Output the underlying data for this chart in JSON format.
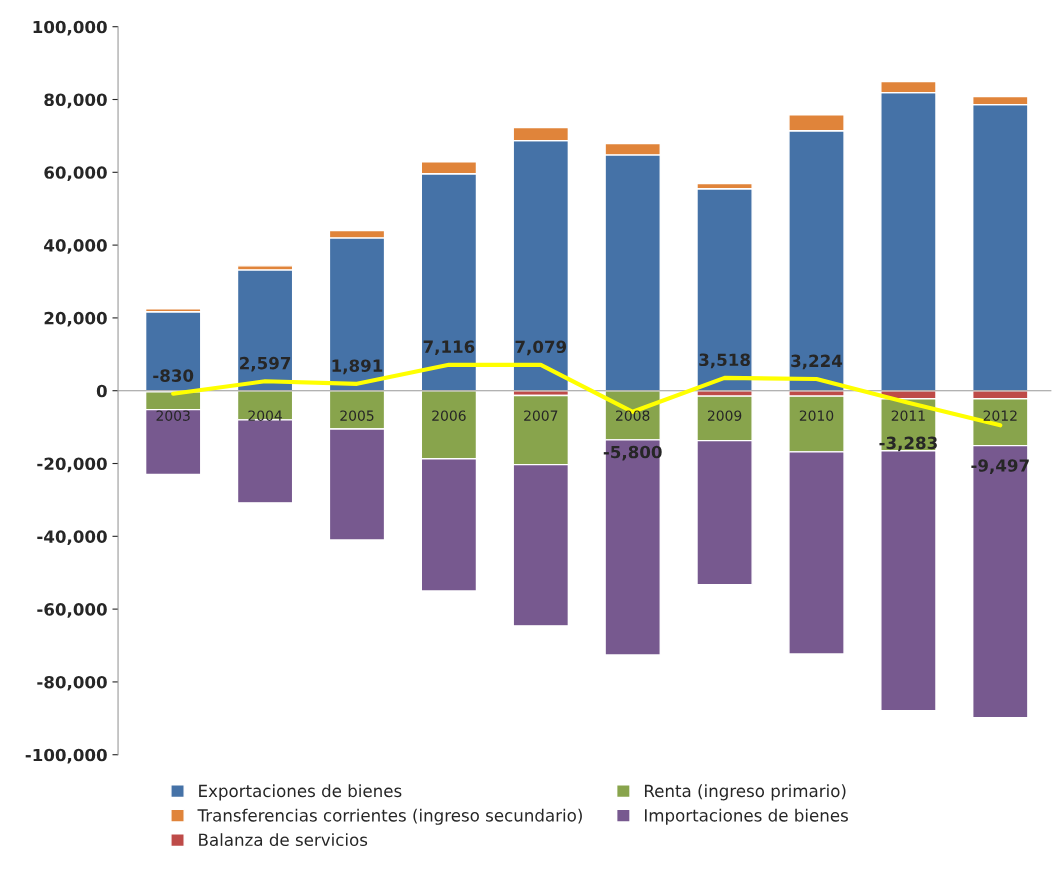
{
  "chart_data": {
    "type": "bar",
    "stacked": true,
    "categories": [
      "2003",
      "2004",
      "2005",
      "2006",
      "2007",
      "2008",
      "2009",
      "2010",
      "2011",
      "2012"
    ],
    "series": [
      {
        "name": "Exportaciones de bienes",
        "color": "#4572a7",
        "values": [
          21700,
          33200,
          42000,
          59600,
          68700,
          64800,
          55500,
          71400,
          81900,
          78600
        ]
      },
      {
        "name": "Transferencias corrientes (ingreso secundario)",
        "color": "#e0843a",
        "values": [
          800,
          1100,
          2000,
          3300,
          3600,
          3100,
          1400,
          4400,
          3000,
          2200
        ]
      },
      {
        "name": "Balanza de servicios",
        "color": "#be4b48",
        "values": [
          -300,
          null,
          null,
          null,
          -1300,
          null,
          -1500,
          -1500,
          -2200,
          -2200
        ]
      },
      {
        "name": "Renta (ingreso primario)",
        "color": "#88a44c",
        "values": [
          -4900,
          -8000,
          -10500,
          -18700,
          -19000,
          -13500,
          -12200,
          -15300,
          -14300,
          -12900
        ]
      },
      {
        "name": "Importaciones de bienes",
        "color": "#77598f",
        "values": [
          -17800,
          -22800,
          -30500,
          -36300,
          -44300,
          -59100,
          -39600,
          -55500,
          -71400,
          -74700
        ]
      },
      {
        "type": "line",
        "color": "#ffff00",
        "values": [
          -830,
          2597,
          1891,
          7116,
          7079,
          -5800,
          3518,
          3224,
          -3283,
          -9497
        ],
        "value_labels": [
          "-830",
          "2,597",
          "1,891",
          "7,116",
          "7,079",
          "-5,800",
          "3,518",
          "3,224",
          "-3,283",
          "-9,497"
        ]
      }
    ],
    "ylim": [
      -100000,
      100000
    ],
    "yticks": [
      {
        "value": -100000,
        "label": "-100,000"
      },
      {
        "value": -80000,
        "label": "-80,000"
      },
      {
        "value": -60000,
        "label": "-60,000"
      },
      {
        "value": -40000,
        "label": "-40,000"
      },
      {
        "value": -20000,
        "label": "-20,000"
      },
      {
        "value": 0,
        "label": "0"
      },
      {
        "value": 20000,
        "label": "20,000"
      },
      {
        "value": 40000,
        "label": "40,000"
      },
      {
        "value": 60000,
        "label": "60,000"
      },
      {
        "value": 80000,
        "label": "80,000"
      },
      {
        "value": 100000,
        "label": "100,000"
      }
    ],
    "legend": "bottom",
    "grid": false
  }
}
